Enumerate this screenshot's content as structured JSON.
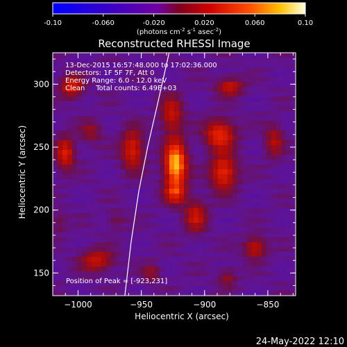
{
  "chart_data": {
    "type": "heatmap",
    "title": "Reconstructed RHESSI Image",
    "colorbar": {
      "label_main": "(photons cm",
      "label_sup1": "-2",
      "label_mid": " s",
      "label_sup2": "-1",
      "label_mid2": " asec",
      "label_sup3": "-2",
      "label_end": ")",
      "range": [
        -0.1,
        0.1
      ],
      "ticks": [
        {
          "value": -0.1,
          "label": "-0.10"
        },
        {
          "value": -0.06,
          "label": "-0.060"
        },
        {
          "value": -0.02,
          "label": "-0.020"
        },
        {
          "value": 0.02,
          "label": "0.020"
        },
        {
          "value": 0.06,
          "label": "0.060"
        },
        {
          "value": 0.1,
          "label": "0.10"
        }
      ]
    },
    "xlabel": "Heliocentric X (arcsec)",
    "ylabel": "Heliocentric Y (arcsec)",
    "xlim": [
      -1020,
      -828
    ],
    "ylim": [
      132,
      325
    ],
    "xticks": [
      {
        "value": -1000,
        "label": "−1000"
      },
      {
        "value": -950,
        "label": "−950"
      },
      {
        "value": -900,
        "label": "−900"
      },
      {
        "value": -850,
        "label": "−850"
      }
    ],
    "yticks": [
      {
        "value": 150,
        "label": "150"
      },
      {
        "value": 200,
        "label": "200"
      },
      {
        "value": 250,
        "label": "250"
      },
      {
        "value": 300,
        "label": "300"
      }
    ],
    "annotations": [
      "13-Dec-2015 16:57:48.000 to 17:02:36.000",
      "Detectors: 1F 5F 7F, Att 0",
      "Energy Range: 6.0 - 12.0 keV",
      "Clean     Total counts: 6.49E+03"
    ],
    "peak_label": "Position of Peak = [-923,231]",
    "limb_points": [
      [
        -963,
        132
      ],
      [
        -958,
        175
      ],
      [
        -952,
        215
      ],
      [
        -945,
        250
      ],
      [
        -937,
        285
      ],
      [
        -928,
        325
      ]
    ],
    "sources": [
      {
        "x": -923,
        "y": 236,
        "sx": 6,
        "sy": 13,
        "amp": 0.11
      },
      {
        "x": -923,
        "y": 213,
        "sx": 6,
        "sy": 6,
        "amp": 0.05
      },
      {
        "x": -926,
        "y": 276,
        "sx": 6,
        "sy": 10,
        "amp": 0.05
      },
      {
        "x": -888,
        "y": 260,
        "sx": 8,
        "sy": 8,
        "amp": 0.07
      },
      {
        "x": -885,
        "y": 230,
        "sx": 7,
        "sy": 10,
        "amp": 0.07
      },
      {
        "x": -880,
        "y": 298,
        "sx": 7,
        "sy": 5,
        "amp": 0.05
      },
      {
        "x": -957,
        "y": 248,
        "sx": 6,
        "sy": 11,
        "amp": 0.06
      },
      {
        "x": -1005,
        "y": 298,
        "sx": 6,
        "sy": 6,
        "amp": 0.06
      },
      {
        "x": -1010,
        "y": 245,
        "sx": 5,
        "sy": 9,
        "amp": 0.06
      },
      {
        "x": -990,
        "y": 262,
        "sx": 6,
        "sy": 6,
        "amp": 0.03
      },
      {
        "x": -907,
        "y": 195,
        "sx": 6,
        "sy": 9,
        "amp": 0.05
      },
      {
        "x": -860,
        "y": 170,
        "sx": 6,
        "sy": 6,
        "amp": 0.05
      },
      {
        "x": -845,
        "y": 255,
        "sx": 5,
        "sy": 9,
        "amp": 0.04
      },
      {
        "x": -985,
        "y": 160,
        "sx": 9,
        "sy": 6,
        "amp": 0.05
      },
      {
        "x": -942,
        "y": 150,
        "sx": 5,
        "sy": 5,
        "amp": 0.03
      },
      {
        "x": -882,
        "y": 146,
        "sx": 5,
        "sy": 5,
        "amp": 0.03
      },
      {
        "x": -970,
        "y": 192,
        "sx": 5,
        "sy": 5,
        "amp": 0.02
      },
      {
        "x": -1015,
        "y": 190,
        "sx": 4,
        "sy": 6,
        "amp": 0.02
      }
    ]
  },
  "footer": {
    "date": "24-May-2022 12:10"
  }
}
